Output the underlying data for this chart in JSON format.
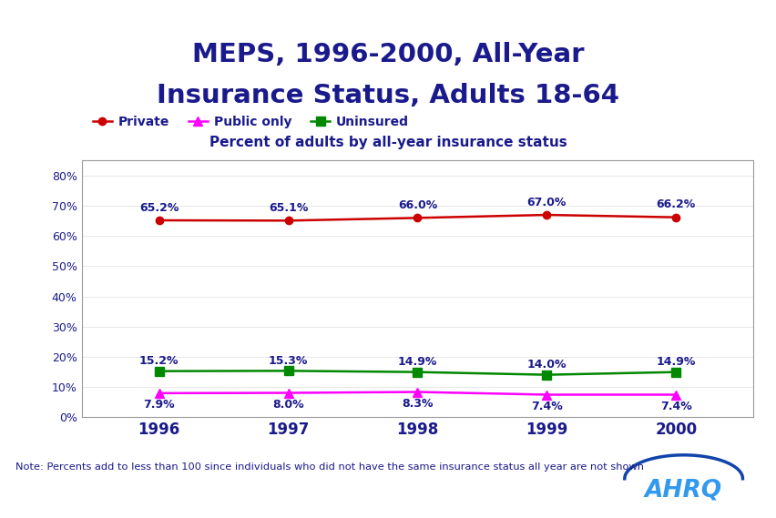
{
  "title_line1": "MEPS, 1996-2000, All-Year",
  "title_line2": "Insurance Status, Adults 18-64",
  "subtitle": "Percent of adults by all-year insurance status",
  "years": [
    1996,
    1997,
    1998,
    1999,
    2000
  ],
  "private": [
    65.2,
    65.1,
    66.0,
    67.0,
    66.2
  ],
  "public": [
    7.9,
    8.0,
    8.3,
    7.4,
    7.4
  ],
  "uninsured": [
    15.2,
    15.3,
    14.9,
    14.0,
    14.9
  ],
  "private_labels": [
    "65.2%",
    "65.1%",
    "66.0%",
    "67.0%",
    "66.2%"
  ],
  "public_labels": [
    "7.9%",
    "8.0%",
    "8.3%",
    "7.4%",
    "7.4%"
  ],
  "uninsured_labels": [
    "15.2%",
    "15.3%",
    "14.9%",
    "14.0%",
    "14.9%"
  ],
  "private_color": "#cc0000",
  "public_color": "#ff00ff",
  "uninsured_color": "#008800",
  "title_color": "#1a1a8c",
  "subtitle_color": "#1a1a8c",
  "axis_label_color": "#1a1a8c",
  "data_label_color": "#1a1a8c",
  "note_text": "Note: Percents add to less than 100 since individuals who did not have the same insurance status all year are not shown",
  "ylim": [
    0,
    85
  ],
  "yticks": [
    0,
    10,
    20,
    30,
    40,
    50,
    60,
    70,
    80
  ],
  "ytick_labels": [
    "0%",
    "10%",
    "20%",
    "30%",
    "40%",
    "50%",
    "60%",
    "70%",
    "80%"
  ],
  "background_color": "#ffffff",
  "divider_color": "#aaccee"
}
